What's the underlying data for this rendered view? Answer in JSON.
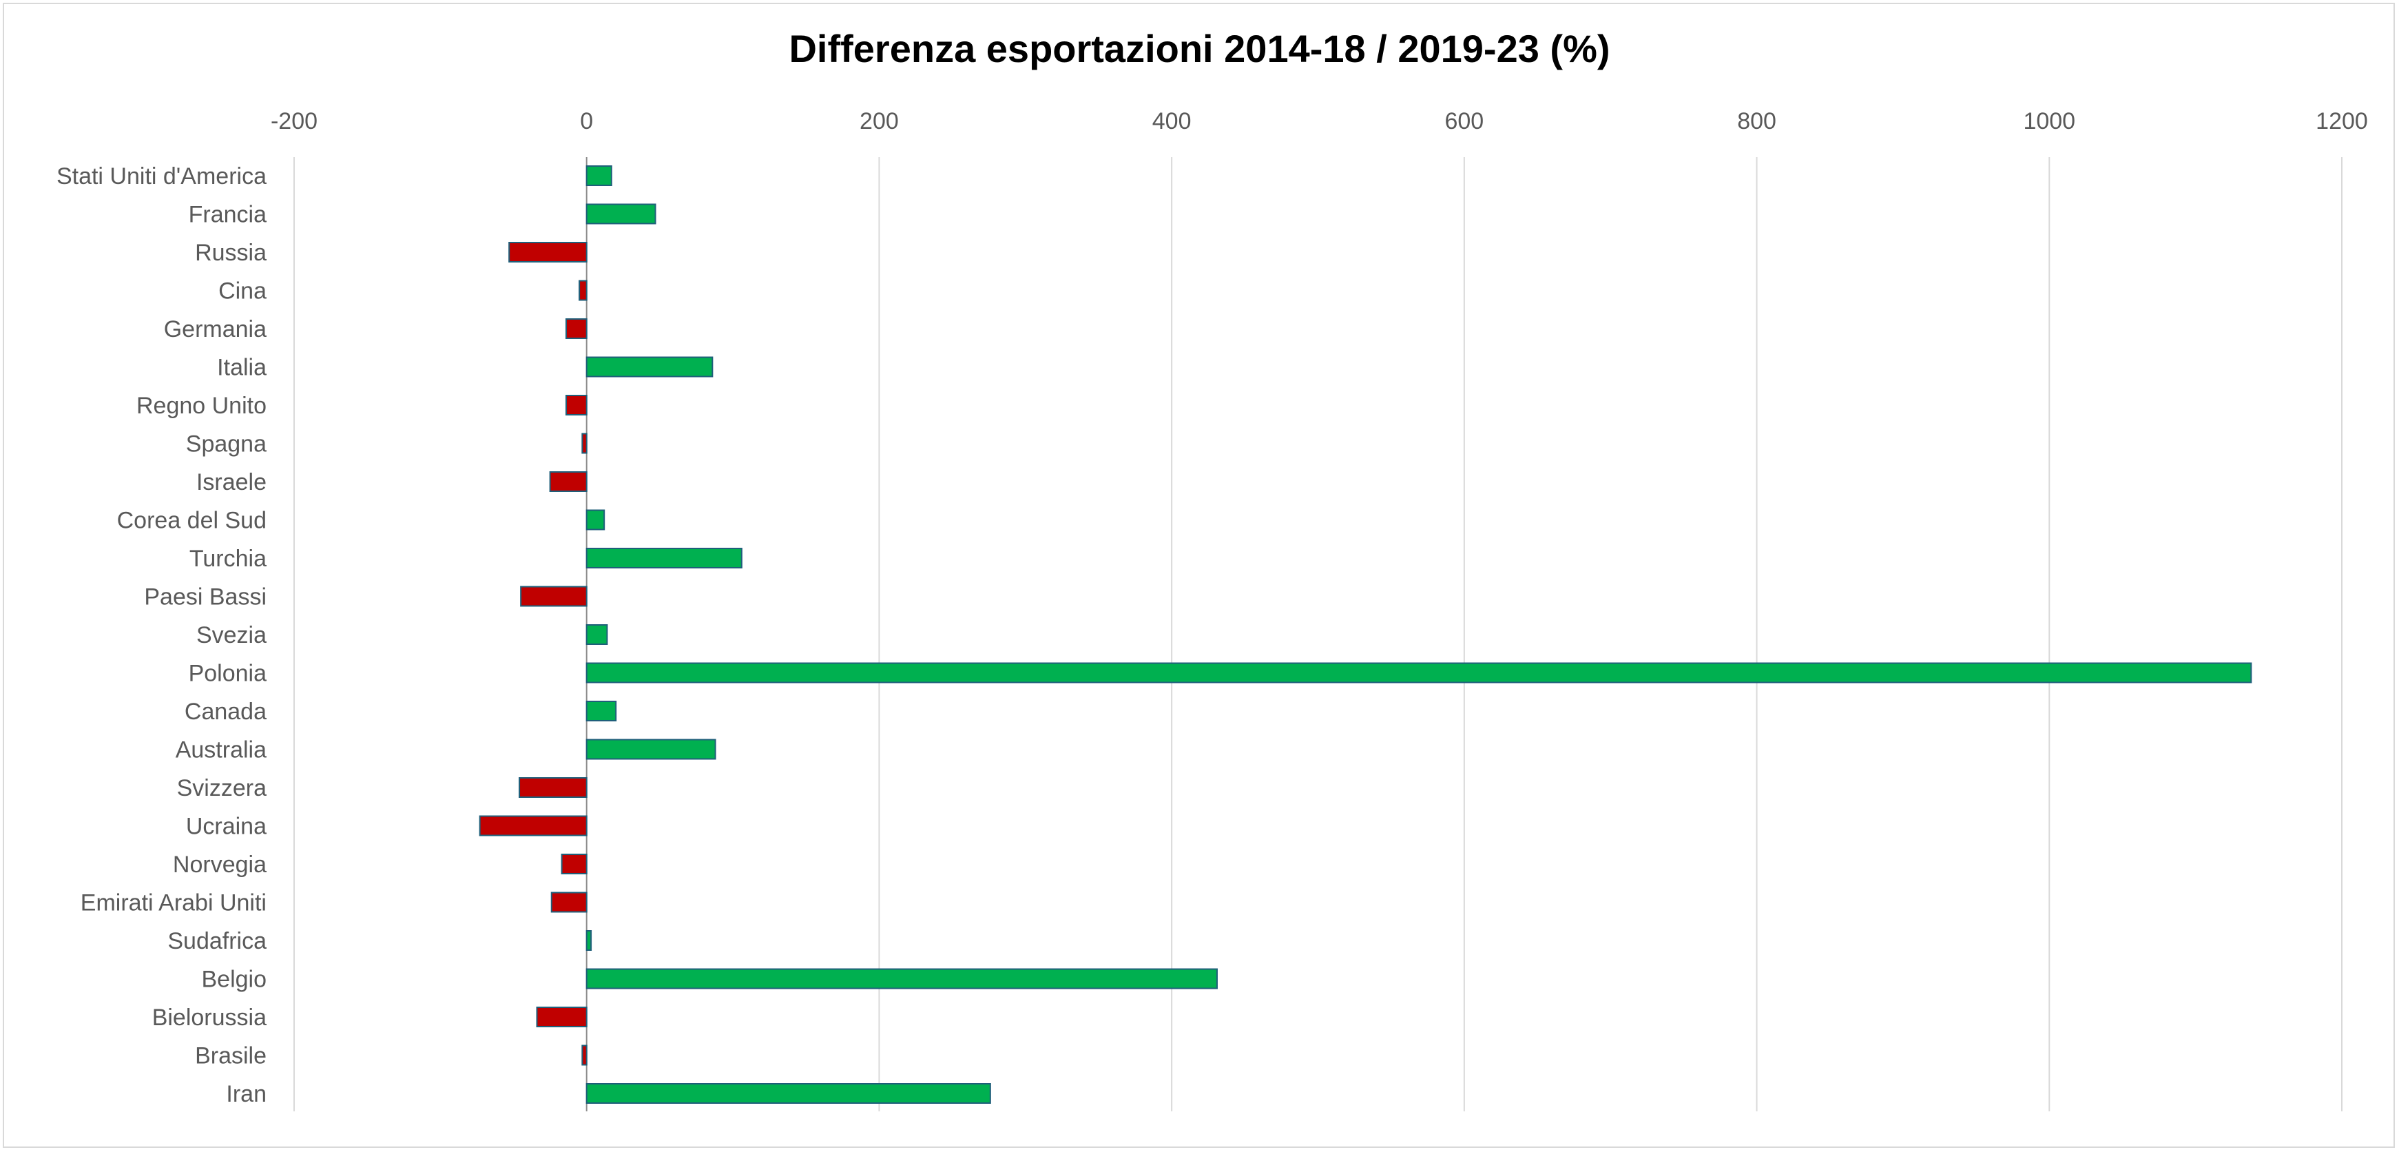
{
  "chart_data": {
    "type": "bar",
    "orientation": "horizontal",
    "title": "Differenza esportazioni 2014-18 / 2019-23 (%)",
    "xlabel": "",
    "ylabel": "",
    "xlim": [
      -200,
      1200
    ],
    "x_ticks": [
      -200,
      0,
      200,
      400,
      600,
      800,
      1000,
      1200
    ],
    "axis_position": "top",
    "grid": true,
    "legend": "none",
    "colors": {
      "positive": "#00b050",
      "negative": "#c00000",
      "bar_border": "#1f5f7a",
      "grid": "#d9d9d9",
      "axis": "#8e8e8e"
    },
    "categories": [
      "Stati Uniti d'America",
      "Francia",
      "Russia",
      "Cina",
      "Germania",
      "Italia",
      "Regno Unito",
      "Spagna",
      "Israele",
      "Corea del Sud",
      "Turchia",
      "Paesi Bassi",
      "Svezia",
      "Polonia",
      "Canada",
      "Australia",
      "Svizzera",
      "Ucraina",
      "Norvegia",
      "Emirati Arabi Uniti",
      "Sudafrica",
      "Belgio",
      "Bielorussia",
      "Brasile",
      "Iran"
    ],
    "values": [
      17,
      47,
      -53,
      -5,
      -14,
      86,
      -14,
      -3,
      -25,
      12,
      106,
      -45,
      14,
      1138,
      20,
      88,
      -46,
      -73,
      -17,
      -24,
      3,
      431,
      -34,
      -3,
      276
    ]
  }
}
